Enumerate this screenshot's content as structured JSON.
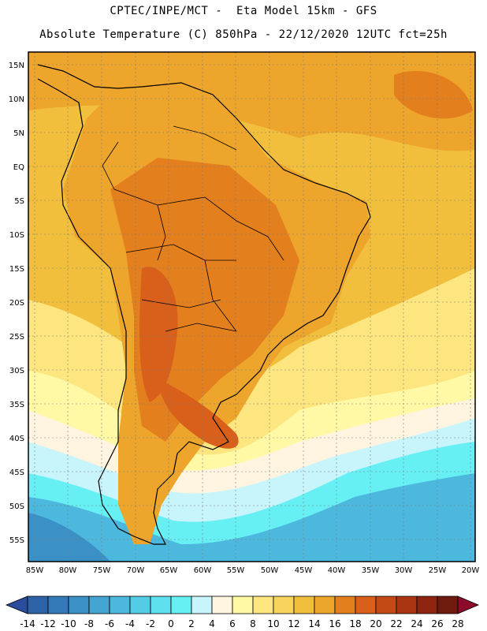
{
  "header": {
    "line1": "CPTEC/INPE/MCT -  Eta Model 15km - GFS",
    "line2": "Absolute Temperature (C) 850hPa - 22/12/2020 12UTC fct=25h"
  },
  "axes": {
    "lat_labels": [
      "15N",
      "10N",
      "5N",
      "EQ",
      "5S",
      "10S",
      "15S",
      "20S",
      "25S",
      "30S",
      "35S",
      "40S",
      "45S",
      "50S",
      "55S"
    ],
    "lon_labels": [
      "85W",
      "80W",
      "75W",
      "70W",
      "65W",
      "60W",
      "55W",
      "50W",
      "45W",
      "40W",
      "35W",
      "30W",
      "25W",
      "20W"
    ]
  },
  "colorbar": {
    "labels": [
      "-14",
      "-12",
      "-10",
      "-8",
      "-6",
      "-4",
      "-2",
      "0",
      "2",
      "4",
      "6",
      "8",
      "10",
      "12",
      "14",
      "16",
      "18",
      "20",
      "22",
      "24",
      "26",
      "28"
    ],
    "colors": [
      "#2a4c9c",
      "#2e62a8",
      "#3479b8",
      "#3b90c6",
      "#44a4d2",
      "#4db8de",
      "#55cce6",
      "#5fe0ee",
      "#66f0f4",
      "#c8f4fc",
      "#fff4e0",
      "#fff9a6",
      "#fde680",
      "#f7d45e",
      "#f2bf3d",
      "#eda52b",
      "#e47f1e",
      "#d9601a",
      "#c34915",
      "#aa3512",
      "#8f2410",
      "#6e1a0e",
      "#8c0a2a"
    ]
  },
  "map": {
    "ocean_color": "#f2bf3d",
    "land_color": "#eda52b",
    "hot_color": "#e47f1e",
    "very_hot_color": "#d9601a",
    "coastline_color": "#000000"
  }
}
